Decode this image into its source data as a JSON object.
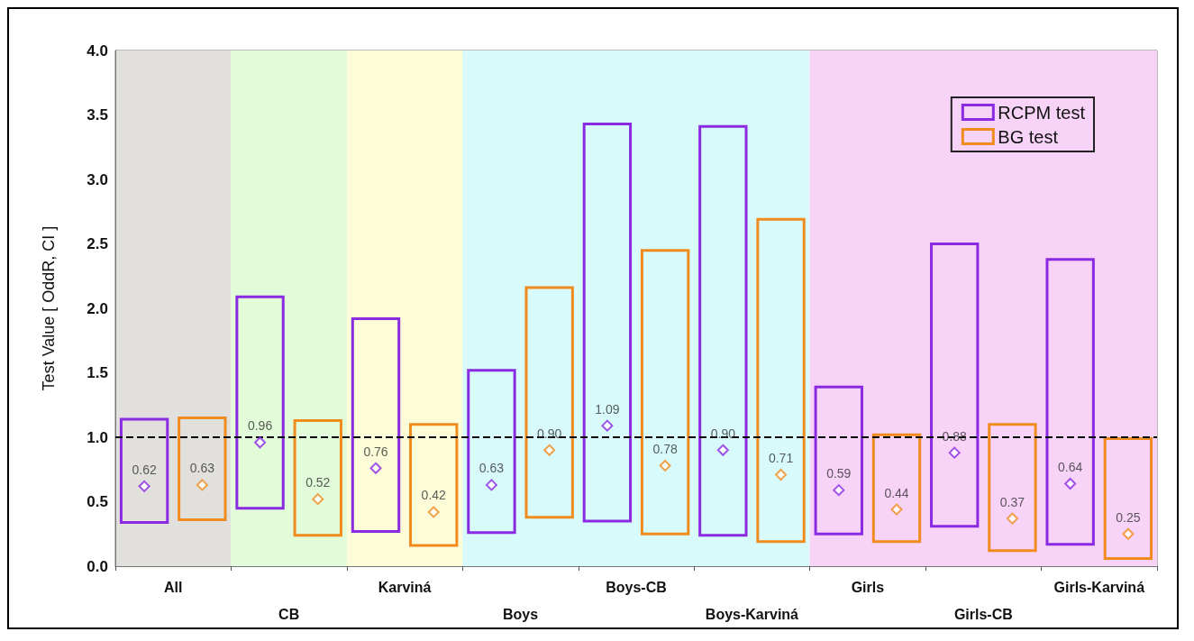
{
  "chart_data": {
    "type": "bar",
    "ylabel": "Test Value [ OddR, CI ]",
    "categories": [
      "All",
      "CB",
      "Karviná",
      "Boys",
      "Boys-CB",
      "Boys-Karviná",
      "Girls",
      "Girls-CB",
      "Girls-Karviná"
    ],
    "series": [
      {
        "name": "RCPM test",
        "color": "#8a2be2",
        "base": [
          0.34,
          0.45,
          0.27,
          0.26,
          0.35,
          0.24,
          0.25,
          0.31,
          0.17
        ],
        "values": [
          0.8,
          1.64,
          1.65,
          1.26,
          3.08,
          3.17,
          1.14,
          2.19,
          2.21
        ]
      },
      {
        "name": "BG test",
        "color": "#f08c1e",
        "base": [
          0.36,
          0.24,
          0.16,
          0.38,
          0.25,
          0.19,
          0.19,
          0.12,
          0.06
        ],
        "values": [
          0.79,
          0.89,
          0.94,
          1.78,
          2.2,
          2.5,
          0.83,
          0.98,
          0.93
        ]
      },
      {
        "type": "scatter",
        "color": "#8a2be2",
        "x": [
          "All",
          "CB",
          "Karviná",
          "Boys",
          "Boys-CB",
          "Boys-Karviná",
          "Girls",
          "Girls-CB",
          "Girls-Karviná"
        ],
        "values": [
          0.62,
          0.96,
          0.76,
          0.63,
          1.09,
          0.9,
          0.59,
          0.88,
          0.64
        ],
        "value_labels": [
          "0.62",
          "0.96",
          "0.76",
          "0.63",
          "1.09",
          "0.90",
          "0.59",
          "0.88",
          "0.64"
        ]
      },
      {
        "type": "scatter",
        "color": "#f08c1e",
        "x": [
          "All",
          "CB",
          "Karviná",
          "Boys",
          "Boys-CB",
          "Boys-Karviná",
          "Girls",
          "Girls-CB",
          "Girls-Karviná"
        ],
        "values": [
          0.63,
          0.52,
          0.42,
          0.9,
          0.78,
          0.71,
          0.44,
          0.37,
          0.25
        ],
        "value_labels": [
          "0.63",
          "0.52",
          "0.42",
          "0.90",
          "0.78",
          "0.71",
          "0.44",
          "0.37",
          "0.25"
        ]
      }
    ],
    "ylim": [
      0,
      4
    ],
    "yticks": [
      {
        "value": 0,
        "label": "0.0"
      },
      {
        "value": 0.5,
        "label": "0.5"
      },
      {
        "value": 1,
        "label": "1.0"
      },
      {
        "value": 1.5,
        "label": "1.5"
      },
      {
        "value": 2,
        "label": "2.0"
      },
      {
        "value": 2.5,
        "label": "2.5"
      },
      {
        "value": 3,
        "label": "3.0"
      },
      {
        "value": 3.5,
        "label": "3.5"
      },
      {
        "value": 4,
        "label": "4.0"
      }
    ],
    "ref_lines": [
      {
        "axis": "y",
        "value": 1,
        "color": "#000000",
        "line_style": "dashed"
      }
    ],
    "bands": [
      {
        "axis": "x",
        "from": "All",
        "to": "All",
        "color": "#e2e0dc"
      },
      {
        "axis": "x",
        "from": "CB",
        "to": "CB",
        "color": "#e2fbd9"
      },
      {
        "axis": "x",
        "from": "Karviná",
        "to": "Karviná",
        "color": "#fcfcd9"
      },
      {
        "axis": "x",
        "from": "Boys",
        "to": "Boys-Karviná",
        "color": "#d9fafb"
      },
      {
        "axis": "x",
        "from": "Girls",
        "to": "Girls-Karviná",
        "color": "#f8d3f8"
      }
    ],
    "marker": "diamond",
    "legend": "top right"
  }
}
